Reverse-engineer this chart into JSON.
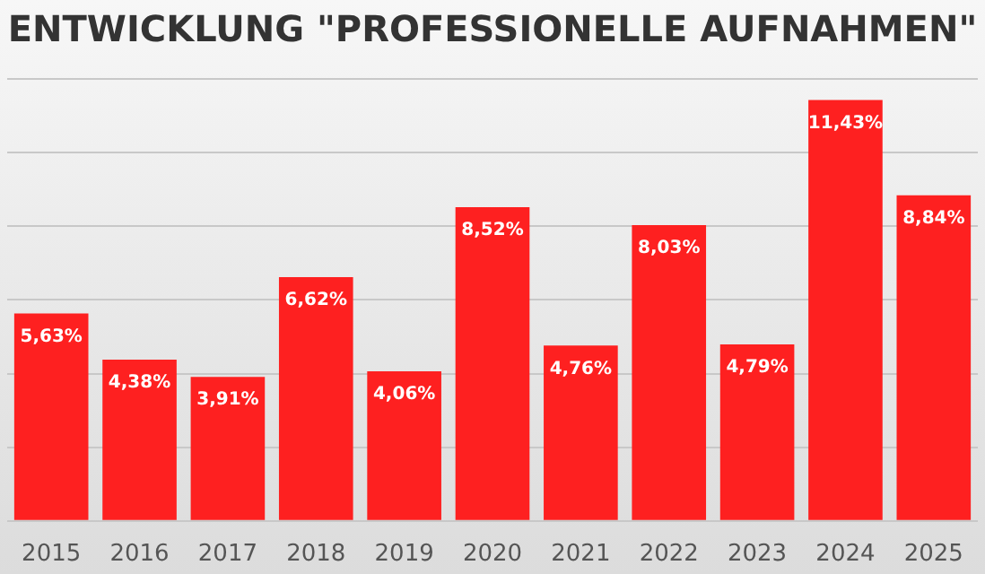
{
  "chart_data": {
    "type": "bar",
    "title": "ENTWICKLUNG \"PROFESSIONELLE AUFNAHMEN\"",
    "categories": [
      "2015",
      "2016",
      "2017",
      "2018",
      "2019",
      "2020",
      "2021",
      "2022",
      "2023",
      "2024",
      "2025"
    ],
    "values": [
      5.63,
      4.38,
      3.91,
      6.62,
      4.06,
      8.52,
      4.76,
      8.03,
      4.79,
      11.43,
      8.84
    ],
    "value_labels": [
      "5,63%",
      "4,38%",
      "3,91%",
      "6,62%",
      "4,06%",
      "8,52%",
      "4,76%",
      "8,03%",
      "4,79%",
      "11,43%",
      "8,84%"
    ],
    "color": "#fe2020",
    "ylim": [
      0,
      12
    ],
    "yticks": [
      {
        "value": 0,
        "label": null
      },
      {
        "value": 2,
        "label": null
      },
      {
        "value": 4,
        "label": null
      },
      {
        "value": 6,
        "label": null
      },
      {
        "value": 8,
        "label": null
      },
      {
        "value": 10,
        "label": null
      },
      {
        "value": 12,
        "label": null
      }
    ],
    "grid": "y",
    "tick_labels": "x",
    "legend": false
  }
}
